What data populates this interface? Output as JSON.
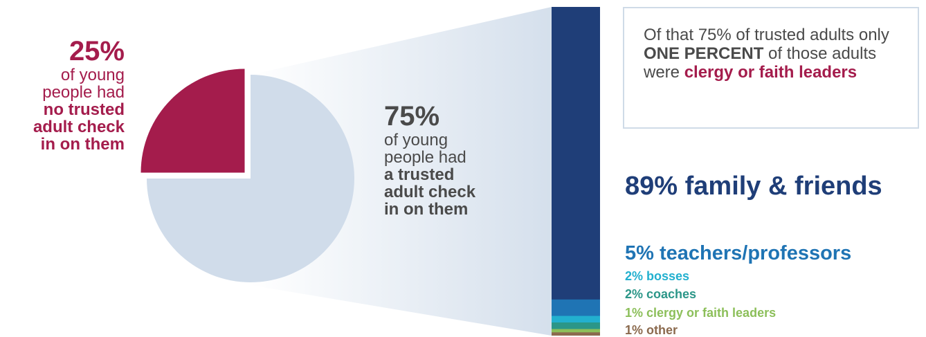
{
  "left": {
    "pct": "25%",
    "line1": "of young",
    "line2": "people had",
    "bold1": "no trusted",
    "bold2": "adult check",
    "bold3": "in on them"
  },
  "middle": {
    "pct": "75%",
    "line1": "of young",
    "line2": "people had",
    "bold1": "a trusted",
    "bold2": "adult check",
    "bold3": "in on them"
  },
  "note": {
    "part1": "Of that 75% of trusted adults only ",
    "emph": "ONE PERCENT",
    "part2": " of those adults were ",
    "emph2": "clergy or faith leaders"
  },
  "chart_data": [
    {
      "type": "pie",
      "categories": [
        "no trusted adult check in on them",
        "a trusted adult check in on them"
      ],
      "values": [
        25,
        75
      ],
      "colors": [
        "#a41c4c",
        "#d0dcea"
      ]
    },
    {
      "type": "bar",
      "stacked": true,
      "orientation": "vertical",
      "categories": [
        "family & friends",
        "teachers/professors",
        "bosses",
        "coaches",
        "clergy or faith leaders",
        "other"
      ],
      "values": [
        89,
        5,
        2,
        2,
        1,
        1
      ],
      "labels": [
        "89% family & friends",
        "5% teachers/professors",
        "2% bosses",
        "2% coaches",
        "1% clergy or faith leaders",
        "1% other"
      ],
      "colors": [
        "#1f3e78",
        "#1f74b4",
        "#22b0cf",
        "#2b9688",
        "#8cbf5a",
        "#8b6a4e"
      ]
    }
  ],
  "colors": {
    "crimson": "#a41c4c",
    "pie_light": "#d0dcea",
    "text_gray": "#4a4a4a",
    "box_border": "#cfdbe7"
  }
}
